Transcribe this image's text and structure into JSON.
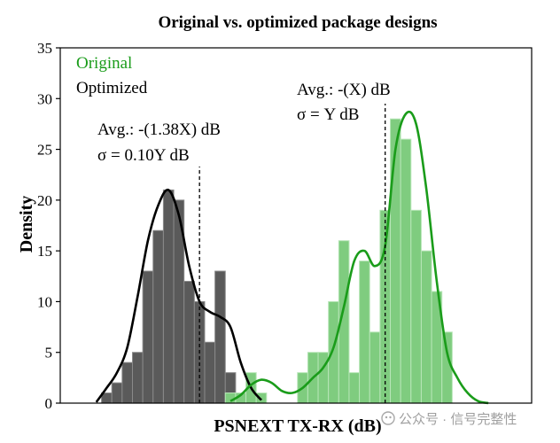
{
  "chart_data": {
    "type": "bar",
    "title": "Original vs. optimized package designs",
    "xlabel": "PSNEXT TX-RX (dB)",
    "ylabel": "Density",
    "ylim": [
      0,
      35
    ],
    "yticks": [
      0,
      5,
      10,
      15,
      20,
      25,
      30,
      35
    ],
    "bin_width": 1,
    "grid": false,
    "legend_position": "top-left",
    "legend": [
      {
        "label": "Original",
        "color": "#1a9c1a"
      },
      {
        "label": "Optimized",
        "color": "#000000"
      }
    ],
    "series": [
      {
        "name": "Optimized",
        "bar_color": "#5a5a5a",
        "bar_edge": "#8a8a8a",
        "curve_color": "#000000",
        "bins": [
          -7.5,
          -6.5,
          -5.5,
          -4.5,
          -3.5,
          -2.5,
          -1.5,
          -0.5,
          0.5,
          1.5,
          2.5,
          3.5,
          4.5,
          5.5
        ],
        "values": [
          1,
          2,
          4,
          5,
          13,
          17,
          21,
          20,
          12,
          10,
          6,
          13,
          3,
          1
        ],
        "curve_x": [
          -8.5,
          -7.5,
          -6.5,
          -5.5,
          -4.5,
          -3.5,
          -2.5,
          -1.5,
          -0.5,
          0.5,
          1.5,
          2.5,
          3.5,
          4.5,
          5.5,
          6.5,
          7.5
        ],
        "curve_y": [
          0.1,
          1.5,
          3.0,
          5.5,
          10.5,
          16.0,
          19.5,
          21.0,
          18.5,
          13.5,
          10.0,
          9.0,
          8.5,
          7.5,
          4.0,
          1.5,
          0.3
        ],
        "mean_x": 1.5
      },
      {
        "name": "Original",
        "bar_color": "#7fcc7f",
        "bar_edge": "#b8e6b8",
        "curve_color": "#1a9c1a",
        "bins": [
          4.5,
          5.5,
          6.5,
          7.5,
          8.5,
          9.5,
          10.5,
          11.5,
          12.5,
          13.5,
          14.5,
          15.5,
          16.5,
          17.5,
          18.5,
          19.5,
          20.5
        ],
        "values": [
          1,
          1,
          3,
          1,
          0,
          0,
          0,
          3,
          5,
          5,
          10,
          16,
          3,
          14,
          7,
          19,
          28
        ],
        "curve_x": [
          4.5,
          5.5,
          6.5,
          7.5,
          8.5,
          9.5,
          10.5,
          11.5,
          12.5,
          13.5,
          14.5,
          15.5,
          16.5,
          17.5,
          18.5,
          19.5,
          20.5,
          21.5,
          22.5,
          23.5,
          24.5,
          25.5,
          26.5,
          27.5,
          28.5,
          29.5
        ],
        "curve_y": [
          0.2,
          0.8,
          1.8,
          2.3,
          2.0,
          1.2,
          1.0,
          1.5,
          2.5,
          3.5,
          5.5,
          9.5,
          14.0,
          15.0,
          13.5,
          15.5,
          25.0,
          28.5,
          27.5,
          21.0,
          12.0,
          5.0,
          2.5,
          1.0,
          0.2,
          0.0
        ],
        "mean_x": 19.5
      }
    ],
    "extra_bars": {
      "series": "Original",
      "bins": [
        21.5,
        22.5,
        23.5,
        24.5,
        25.5
      ],
      "values": [
        26,
        19,
        15,
        11,
        7
      ]
    },
    "annotations": [
      {
        "id": "optimized-avg",
        "text": "Avg.: -(1.38X) dB",
        "x": -4.3,
        "y": 26.2
      },
      {
        "id": "optimized-sigma",
        "text": "σ = 0.10Y dB",
        "x": -4.3,
        "y": 23.5
      },
      {
        "id": "original-avg",
        "text": "Avg.: -(X) dB",
        "x": 14.6,
        "y": 30.0
      },
      {
        "id": "original-sigma",
        "text": "σ = Y dB",
        "x": 14.6,
        "y": 27.3
      }
    ]
  },
  "watermark": "公众号 · 信号完整性"
}
